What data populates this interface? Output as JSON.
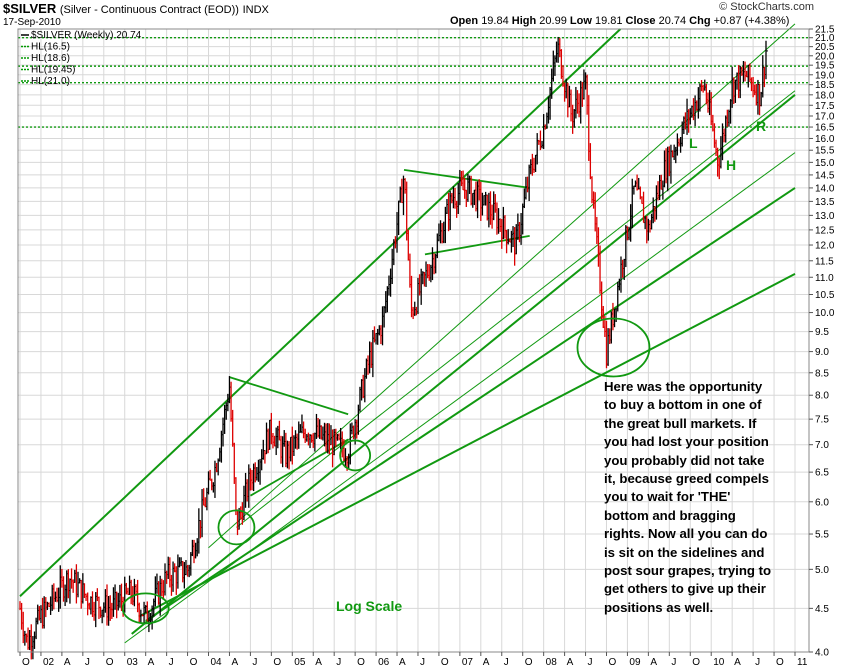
{
  "header": {
    "symbol": "$SILVER",
    "description": "(Silver - Continuous Contract (EOD))",
    "exchange": "INDX",
    "date": "17-Sep-2010",
    "open_label": "Open",
    "open": "19.84",
    "high_label": "High",
    "high": "20.99",
    "low_label": "Low",
    "low": "19.81",
    "close_label": "Close",
    "close": "20.74",
    "chg_label": "Chg",
    "chg": "+0.87 (+4.38%)",
    "brand": "© StockCharts.com"
  },
  "legend": [
    {
      "label": "$SILVER (Weekly) 20.74",
      "color": "#000000"
    },
    {
      "label": "HL(16.5)",
      "color": "#009900"
    },
    {
      "label": "HL(18.6)",
      "color": "#009900"
    },
    {
      "label": "HL(19.45)",
      "color": "#009900"
    },
    {
      "label": "HL(21.0)",
      "color": "#009900"
    }
  ],
  "annotations": {
    "log_scale": "Log Scale",
    "L": "L",
    "H": "H",
    "R": "R",
    "note": "Here was the opportunity\nto buy a bottom in one of\nthe great bull markets.  If\nyou had lost your position\nyou probably did not take\nit, because greed compels\nyou to wait for 'THE'\nbottom and bragging\nrights.  Now all you can do\nis sit on the sidelines and\npost sour grapes, trying to\nget others to give up their\npositions as well."
  },
  "colors": {
    "up_bar": "#000000",
    "down_bar": "#dd0000",
    "trendline": "#119911",
    "grid": "#d8d8d8",
    "annotation_green": "#119911"
  },
  "chart_data": {
    "type": "ohlc",
    "title": "$SILVER (Silver - Continuous Contract (EOD))",
    "period": "Weekly",
    "scale": "log",
    "ylim": [
      4.0,
      21.5
    ],
    "y_ticks": [
      "4.0",
      "4.5",
      "5.0",
      "5.5",
      "6.0",
      "6.5",
      "7.0",
      "7.5",
      "8.0",
      "8.5",
      "9.0",
      "9.5",
      "10.0",
      "10.5",
      "11.0",
      "11.5",
      "12.0",
      "12.5",
      "13.0",
      "13.5",
      "14.0",
      "14.5",
      "15.0",
      "15.5",
      "16.0",
      "16.5",
      "17.0",
      "17.5",
      "18.0",
      "18.5",
      "19.0",
      "19.5",
      "20.0",
      "20.5",
      "21.0",
      "21.5"
    ],
    "x_ticks": [
      "O",
      "02",
      "A",
      "J",
      "O",
      "03",
      "A",
      "J",
      "O",
      "04",
      "A",
      "J",
      "O",
      "05",
      "A",
      "J",
      "O",
      "06",
      "A",
      "J",
      "O",
      "07",
      "A",
      "J",
      "O",
      "08",
      "A",
      "J",
      "O",
      "09",
      "A",
      "J",
      "O",
      "10",
      "A",
      "J",
      "O",
      "11"
    ],
    "horizontal_lines": [
      16.5,
      18.6,
      19.45,
      21.0
    ],
    "approx_path": [
      [
        "2001-10",
        4.5
      ],
      [
        "2001-11",
        4.1
      ],
      [
        "2002-01",
        4.4
      ],
      [
        "2002-05",
        4.9
      ],
      [
        "2002-08",
        4.6
      ],
      [
        "2002-11",
        4.5
      ],
      [
        "2003-02",
        4.7
      ],
      [
        "2003-04",
        4.4
      ],
      [
        "2003-07",
        4.9
      ],
      [
        "2003-10",
        5.0
      ],
      [
        "2003-12",
        5.8
      ],
      [
        "2004-02",
        6.6
      ],
      [
        "2004-04",
        8.2
      ],
      [
        "2004-05",
        5.6
      ],
      [
        "2004-07",
        6.4
      ],
      [
        "2004-10",
        7.3
      ],
      [
        "2004-12",
        6.8
      ],
      [
        "2005-03",
        7.3
      ],
      [
        "2005-07",
        7.0
      ],
      [
        "2005-09",
        6.9
      ],
      [
        "2005-12",
        8.8
      ],
      [
        "2006-02",
        9.8
      ],
      [
        "2006-05",
        14.5
      ],
      [
        "2006-06",
        10.0
      ],
      [
        "2006-09",
        11.5
      ],
      [
        "2006-12",
        13.7
      ],
      [
        "2007-02",
        14.0
      ],
      [
        "2007-04",
        13.5
      ],
      [
        "2007-06",
        13.0
      ],
      [
        "2007-09",
        12.0
      ],
      [
        "2007-11",
        14.5
      ],
      [
        "2008-01",
        16.5
      ],
      [
        "2008-03",
        20.5
      ],
      [
        "2008-05",
        17.0
      ],
      [
        "2008-07",
        18.5
      ],
      [
        "2008-08",
        13.5
      ],
      [
        "2008-10",
        9.0
      ],
      [
        "2008-11",
        10.0
      ],
      [
        "2009-02",
        14.0
      ],
      [
        "2009-04",
        12.5
      ],
      [
        "2009-06",
        14.5
      ],
      [
        "2009-09",
        16.5
      ],
      [
        "2009-12",
        18.5
      ],
      [
        "2010-02",
        15.0
      ],
      [
        "2010-04",
        18.5
      ],
      [
        "2010-06",
        19.0
      ],
      [
        "2010-08",
        18.0
      ],
      [
        "2010-09",
        20.74
      ]
    ]
  }
}
